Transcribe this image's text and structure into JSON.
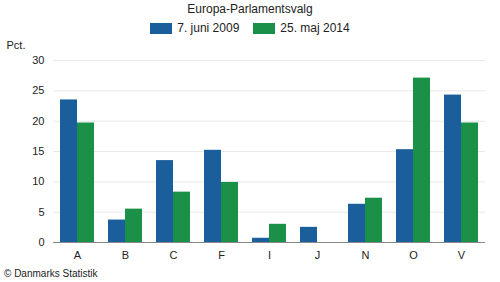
{
  "chart_data": {
    "type": "bar",
    "title": "Europa-Parlamentsvalg",
    "ylabel": "Pct.",
    "caption": "© Danmarks Statistik",
    "categories": [
      "A",
      "B",
      "C",
      "F",
      "I",
      "J",
      "N",
      "O",
      "V"
    ],
    "series": [
      {
        "name": "7. juni 2009",
        "color": "#1a5e9c",
        "values": [
          23.5,
          3.7,
          13.5,
          15.2,
          0.7,
          2.5,
          6.3,
          15.3,
          24.3
        ]
      },
      {
        "name": "25. maj 2014",
        "color": "#1a9048",
        "values": [
          19.7,
          5.5,
          8.3,
          9.9,
          3.0,
          null,
          7.3,
          27.1,
          19.7
        ]
      }
    ],
    "ylim": [
      0,
      30
    ],
    "yticks": [
      0,
      5,
      10,
      15,
      20,
      25,
      30
    ],
    "grid": true,
    "legend": "top"
  }
}
